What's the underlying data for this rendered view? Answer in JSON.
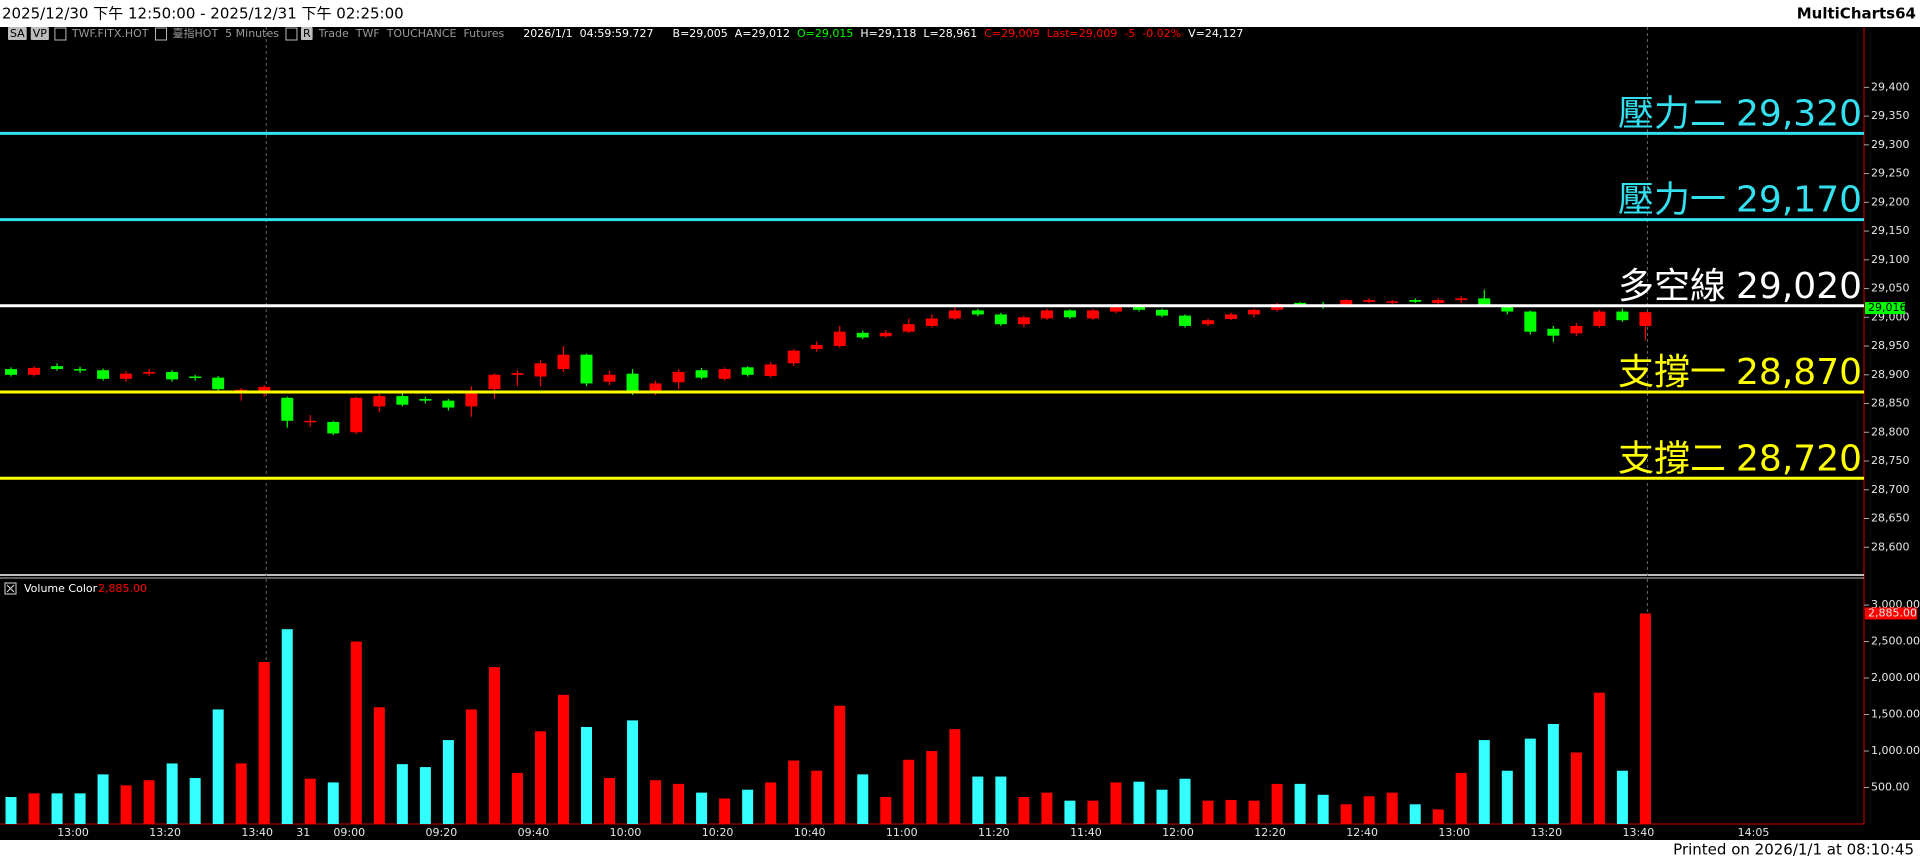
{
  "window": {
    "title": "2025/12/30 下午 12:50:00 - 2025/12/31 下午 02:25:00",
    "app": "MultiCharts64",
    "footer": "Printed on 2026/1/1 at 08:10:45"
  },
  "header": {
    "items": [
      {
        "text": "SA",
        "color": "#000000"
      },
      {
        "text": "VP",
        "color": "#000000"
      },
      {
        "text": "TWF.FITX.HOT",
        "color": "#9a9a9a"
      },
      {
        "text": "臺指HOT",
        "color": "#9a9a9a"
      },
      {
        "text": "5 Minutes",
        "color": "#9a9a9a"
      },
      {
        "text": "R",
        "color": "#000000"
      },
      {
        "text": "Trade",
        "color": "#9a9a9a"
      },
      {
        "text": "TWF",
        "color": "#9a9a9a"
      },
      {
        "text": "TOUCHANCE",
        "color": "#9a9a9a"
      },
      {
        "text": "Futures",
        "color": "#9a9a9a"
      },
      {
        "text": "2026/1/1",
        "color": "#ffffff"
      },
      {
        "text": "04:59:59.727",
        "color": "#ffffff"
      },
      {
        "text": "B=29,005",
        "color": "#ffffff"
      },
      {
        "text": "A=29,012",
        "color": "#ffffff"
      },
      {
        "text": "O=29,015",
        "color": "#00ff00"
      },
      {
        "text": "H=29,118",
        "color": "#ffffff"
      },
      {
        "text": "L=28,961",
        "color": "#ffffff"
      },
      {
        "text": "C=29,009",
        "color": "#ff0000"
      },
      {
        "text": "Last=29,009",
        "color": "#ff0000"
      },
      {
        "text": "-5",
        "color": "#ff0000"
      },
      {
        "text": "-0.02%",
        "color": "#ff0000"
      },
      {
        "text": "V=24,127",
        "color": "#ffffff"
      }
    ]
  },
  "chart_data": [
    {
      "type": "candlestick",
      "up_color": "#ff0000",
      "down_color": "#00ff00",
      "open": [
        28910,
        28900,
        28915,
        28910,
        28908,
        28893,
        28902,
        28905,
        28897,
        28895,
        28872,
        28870,
        28860,
        28818,
        28818,
        28800,
        28845,
        28863,
        28858,
        28855,
        28845,
        28875,
        28900,
        28897,
        28910,
        28935,
        28888,
        28902,
        28870,
        28887,
        28908,
        28893,
        28913,
        28898,
        28920,
        28945,
        28950,
        28973,
        28967,
        28975,
        28985,
        28998,
        29012,
        29005,
        28988,
        28998,
        29012,
        28998,
        29010,
        29020,
        29013,
        29003,
        28988,
        28997,
        29005,
        29013,
        29025,
        29022,
        29020,
        29027,
        29027,
        29030,
        29025,
        29030,
        29033,
        29020,
        29010,
        28980,
        28972,
        28985,
        29010,
        28985,
        null,
        null,
        null,
        null
      ],
      "high": [
        28913,
        28915,
        28920,
        28914,
        28911,
        28906,
        28910,
        28908,
        28900,
        28898,
        28877,
        28882,
        28862,
        28830,
        28820,
        28862,
        28867,
        28868,
        28862,
        28858,
        28880,
        28903,
        28908,
        28925,
        28950,
        28937,
        28907,
        28910,
        28890,
        28910,
        28912,
        28913,
        28915,
        28922,
        28945,
        28958,
        28985,
        28977,
        28978,
        28998,
        29005,
        29017,
        29015,
        29008,
        29003,
        29015,
        29014,
        29015,
        29023,
        29022,
        29015,
        29005,
        28998,
        29008,
        29015,
        29025,
        29027,
        29027,
        29032,
        29033,
        29030,
        29033,
        29033,
        29037,
        29048,
        29022,
        29012,
        28985,
        28990,
        29013,
        29015,
        29010,
        null,
        null,
        null,
        null
      ],
      "low": [
        28897,
        28897,
        28907,
        28903,
        28890,
        28888,
        28898,
        28888,
        28890,
        28870,
        28855,
        28862,
        28808,
        28810,
        28795,
        28797,
        28835,
        28845,
        28850,
        28838,
        28827,
        28858,
        28880,
        28880,
        28905,
        28880,
        28882,
        28865,
        28865,
        28875,
        28892,
        28890,
        28897,
        28895,
        28915,
        28940,
        28947,
        28962,
        28965,
        28972,
        28982,
        28995,
        29002,
        28985,
        28983,
        28995,
        28997,
        28995,
        29007,
        29010,
        29000,
        28982,
        28985,
        28995,
        29000,
        29010,
        29018,
        29015,
        29017,
        29025,
        29020,
        29025,
        29022,
        29025,
        29018,
        29005,
        28970,
        28957,
        28967,
        28982,
        28992,
        28960,
        null,
        null,
        null,
        null
      ],
      "close": [
        28900,
        28912,
        28910,
        28908,
        28893,
        28902,
        28905,
        28892,
        28895,
        28875,
        28874,
        28879,
        28820,
        28820,
        28798,
        28860,
        28863,
        28848,
        28855,
        28843,
        28869,
        28900,
        28903,
        28920,
        28935,
        28885,
        28900,
        28870,
        28885,
        28905,
        28895,
        28910,
        28900,
        28918,
        28942,
        28952,
        28975,
        28965,
        28973,
        28988,
        28998,
        29012,
        29005,
        28988,
        29000,
        29012,
        29000,
        29012,
        29020,
        29013,
        29003,
        28985,
        28995,
        29005,
        29013,
        29023,
        29023,
        29020,
        29030,
        29030,
        29028,
        29027,
        29030,
        29033,
        29020,
        29010,
        28975,
        28968,
        28985,
        29010,
        28995,
        29009,
        null,
        null,
        null,
        null
      ],
      "ylim": [
        28550,
        29505
      ],
      "yticks": [
        {
          "value": 28600,
          "label": "28,600"
        },
        {
          "value": 28650,
          "label": "28,650"
        },
        {
          "value": 28700,
          "label": "28,700"
        },
        {
          "value": 28750,
          "label": "28,750"
        },
        {
          "value": 28800,
          "label": "28,800"
        },
        {
          "value": 28850,
          "label": "28,850"
        },
        {
          "value": 28900,
          "label": "28,900"
        },
        {
          "value": 28950,
          "label": "28,950"
        },
        {
          "value": 29000,
          "label": "29,000"
        },
        {
          "value": 29050,
          "label": "29,050"
        },
        {
          "value": 29100,
          "label": "29,100"
        },
        {
          "value": 29150,
          "label": "29,150"
        },
        {
          "value": 29200,
          "label": "29,200"
        },
        {
          "value": 29250,
          "label": "29,250"
        },
        {
          "value": 29300,
          "label": "29,300"
        },
        {
          "value": 29350,
          "label": "29,350"
        },
        {
          "value": 29400,
          "label": "29,400"
        }
      ],
      "levels": [
        {
          "name": "壓力二",
          "value": 29320,
          "label": "29,320",
          "color": "#33e0f0"
        },
        {
          "name": "壓力一",
          "value": 29170,
          "label": "29,170",
          "color": "#33e0f0"
        },
        {
          "name": "多空線",
          "value": 29020,
          "label": "29,020",
          "color": "#ffffff"
        },
        {
          "name": "支撐一",
          "value": 28870,
          "label": "28,870",
          "color": "#ffff00"
        },
        {
          "name": "支撐二",
          "value": 28720,
          "label": "28,720",
          "color": "#ffff00"
        }
      ],
      "price_tag": {
        "value": 29016,
        "label": "29,016",
        "color": "#00ff00"
      }
    },
    {
      "type": "bar",
      "name": "Volume Color",
      "up_color": "#ff0000",
      "down_color": "#33ffff",
      "categories": [
        null,
        null,
        "13:00",
        null,
        null,
        null,
        "13:20",
        null,
        null,
        null,
        "13:40",
        null,
        "31",
        null,
        "09:00",
        null,
        null,
        null,
        "09:20",
        null,
        null,
        null,
        "09:40",
        null,
        null,
        null,
        "10:00",
        null,
        null,
        null,
        "10:20",
        null,
        null,
        null,
        "10:40",
        null,
        null,
        null,
        "11:00",
        null,
        null,
        null,
        "11:20",
        null,
        null,
        null,
        "11:40",
        null,
        null,
        null,
        "12:00",
        null,
        null,
        null,
        "12:20",
        null,
        null,
        null,
        "12:40",
        null,
        null,
        null,
        "13:00",
        null,
        null,
        null,
        "13:20",
        null,
        null,
        null,
        "13:40",
        null,
        null,
        null,
        null,
        "14:05"
      ],
      "values": [
        370,
        420,
        420,
        420,
        680,
        530,
        600,
        830,
        630,
        1570,
        830,
        2220,
        2670,
        620,
        570,
        2500,
        1600,
        820,
        780,
        1150,
        1570,
        2150,
        700,
        1270,
        1770,
        1330,
        630,
        1420,
        600,
        550,
        430,
        350,
        470,
        570,
        870,
        730,
        1620,
        680,
        370,
        880,
        1000,
        1300,
        650,
        650,
        370,
        430,
        320,
        320,
        570,
        580,
        470,
        620,
        320,
        330,
        320,
        550,
        550,
        400,
        270,
        380,
        430,
        270,
        200,
        700,
        1150,
        730,
        1170,
        1370,
        980,
        1800,
        730,
        2885,
        null,
        null,
        null,
        null
      ],
      "ylim": [
        0,
        3330
      ],
      "yticks": [
        {
          "value": 500,
          "label": "500.00"
        },
        {
          "value": 1000,
          "label": "1,000.00"
        },
        {
          "value": 1500,
          "label": "1,500.00"
        },
        {
          "value": 2000,
          "label": "2,000.00"
        },
        {
          "value": 2500,
          "label": "2,500.00"
        },
        {
          "value": 3000,
          "label": "3,000.00"
        }
      ],
      "current": {
        "value": 2885,
        "label": "2,885.00",
        "color": "#ff0000"
      }
    }
  ]
}
